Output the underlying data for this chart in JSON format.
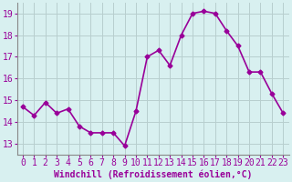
{
  "x": [
    0,
    1,
    2,
    3,
    4,
    5,
    6,
    7,
    8,
    9,
    10,
    11,
    12,
    13,
    14,
    15,
    16,
    17,
    18,
    19,
    20,
    21,
    22,
    23
  ],
  "y": [
    14.7,
    14.3,
    14.9,
    14.4,
    14.6,
    13.8,
    13.5,
    13.5,
    13.5,
    12.9,
    14.5,
    17.0,
    17.3,
    16.6,
    18.0,
    19.0,
    19.1,
    19.0,
    18.2,
    17.5,
    16.3,
    16.3,
    15.3,
    14.4
  ],
  "line_color": "#990099",
  "marker": "D",
  "marker_size": 2.5,
  "bg_color": "#d8f0f0",
  "grid_color": "#b8cece",
  "xlabel": "Windchill (Refroidissement éolien,°C)",
  "ylabel": "",
  "ylim": [
    12.5,
    19.5
  ],
  "yticks": [
    13,
    14,
    15,
    16,
    17,
    18,
    19
  ],
  "xticks": [
    0,
    1,
    2,
    3,
    4,
    5,
    6,
    7,
    8,
    9,
    10,
    11,
    12,
    13,
    14,
    15,
    16,
    17,
    18,
    19,
    20,
    21,
    22,
    23
  ],
  "font_color": "#990099",
  "axis_color": "#888888",
  "xlabel_fontsize": 7,
  "tick_fontsize": 7,
  "linewidth": 1.2
}
